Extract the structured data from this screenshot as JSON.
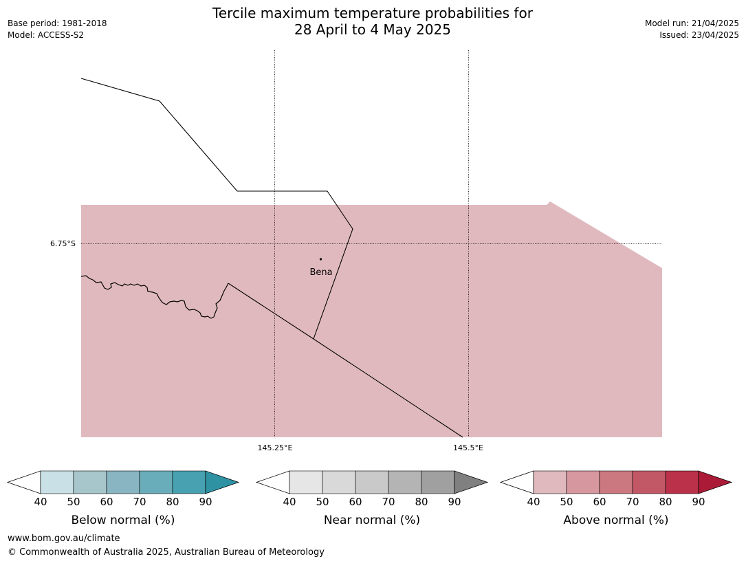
{
  "header": {
    "title_line1": "Tercile maximum temperature probabilities for",
    "title_line2": "28 April to 4 May 2025",
    "base_period": "Base period: 1981-2018",
    "model": "Model: ACCESS-S2",
    "model_run": "Model run: 21/04/2025",
    "issued": "Issued: 23/04/2025"
  },
  "map": {
    "lat_label": "6.75°S",
    "lon_labels": [
      "145.25°E",
      "145.5°E"
    ],
    "place_label": "Bena",
    "shading_color": "#e0b9be",
    "boundary_color": "#000000"
  },
  "colorbars": [
    {
      "label": "Below normal (%)",
      "ticks": [
        "40",
        "50",
        "60",
        "70",
        "80",
        "90"
      ],
      "colors": [
        "#ffffff",
        "#c9e1e6",
        "#a7c6cb",
        "#88b5c1",
        "#6aadba",
        "#47a1b0",
        "#2e92a3"
      ]
    },
    {
      "label": "Near normal (%)",
      "ticks": [
        "40",
        "50",
        "60",
        "70",
        "80",
        "90"
      ],
      "colors": [
        "#ffffff",
        "#e6e6e6",
        "#d9d9d9",
        "#c9c9c9",
        "#b4b4b4",
        "#a0a0a0",
        "#808080"
      ]
    },
    {
      "label": "Above normal (%)",
      "ticks": [
        "40",
        "50",
        "60",
        "70",
        "80",
        "90"
      ],
      "colors": [
        "#ffffff",
        "#e0b9be",
        "#d7979f",
        "#cc7880",
        "#c25866",
        "#ba3149",
        "#ab1b37"
      ]
    }
  ],
  "footer": {
    "url": "www.bom.gov.au/climate",
    "copyright": "© Commonwealth of Australia 2025, Australian Bureau of Meteorology"
  }
}
